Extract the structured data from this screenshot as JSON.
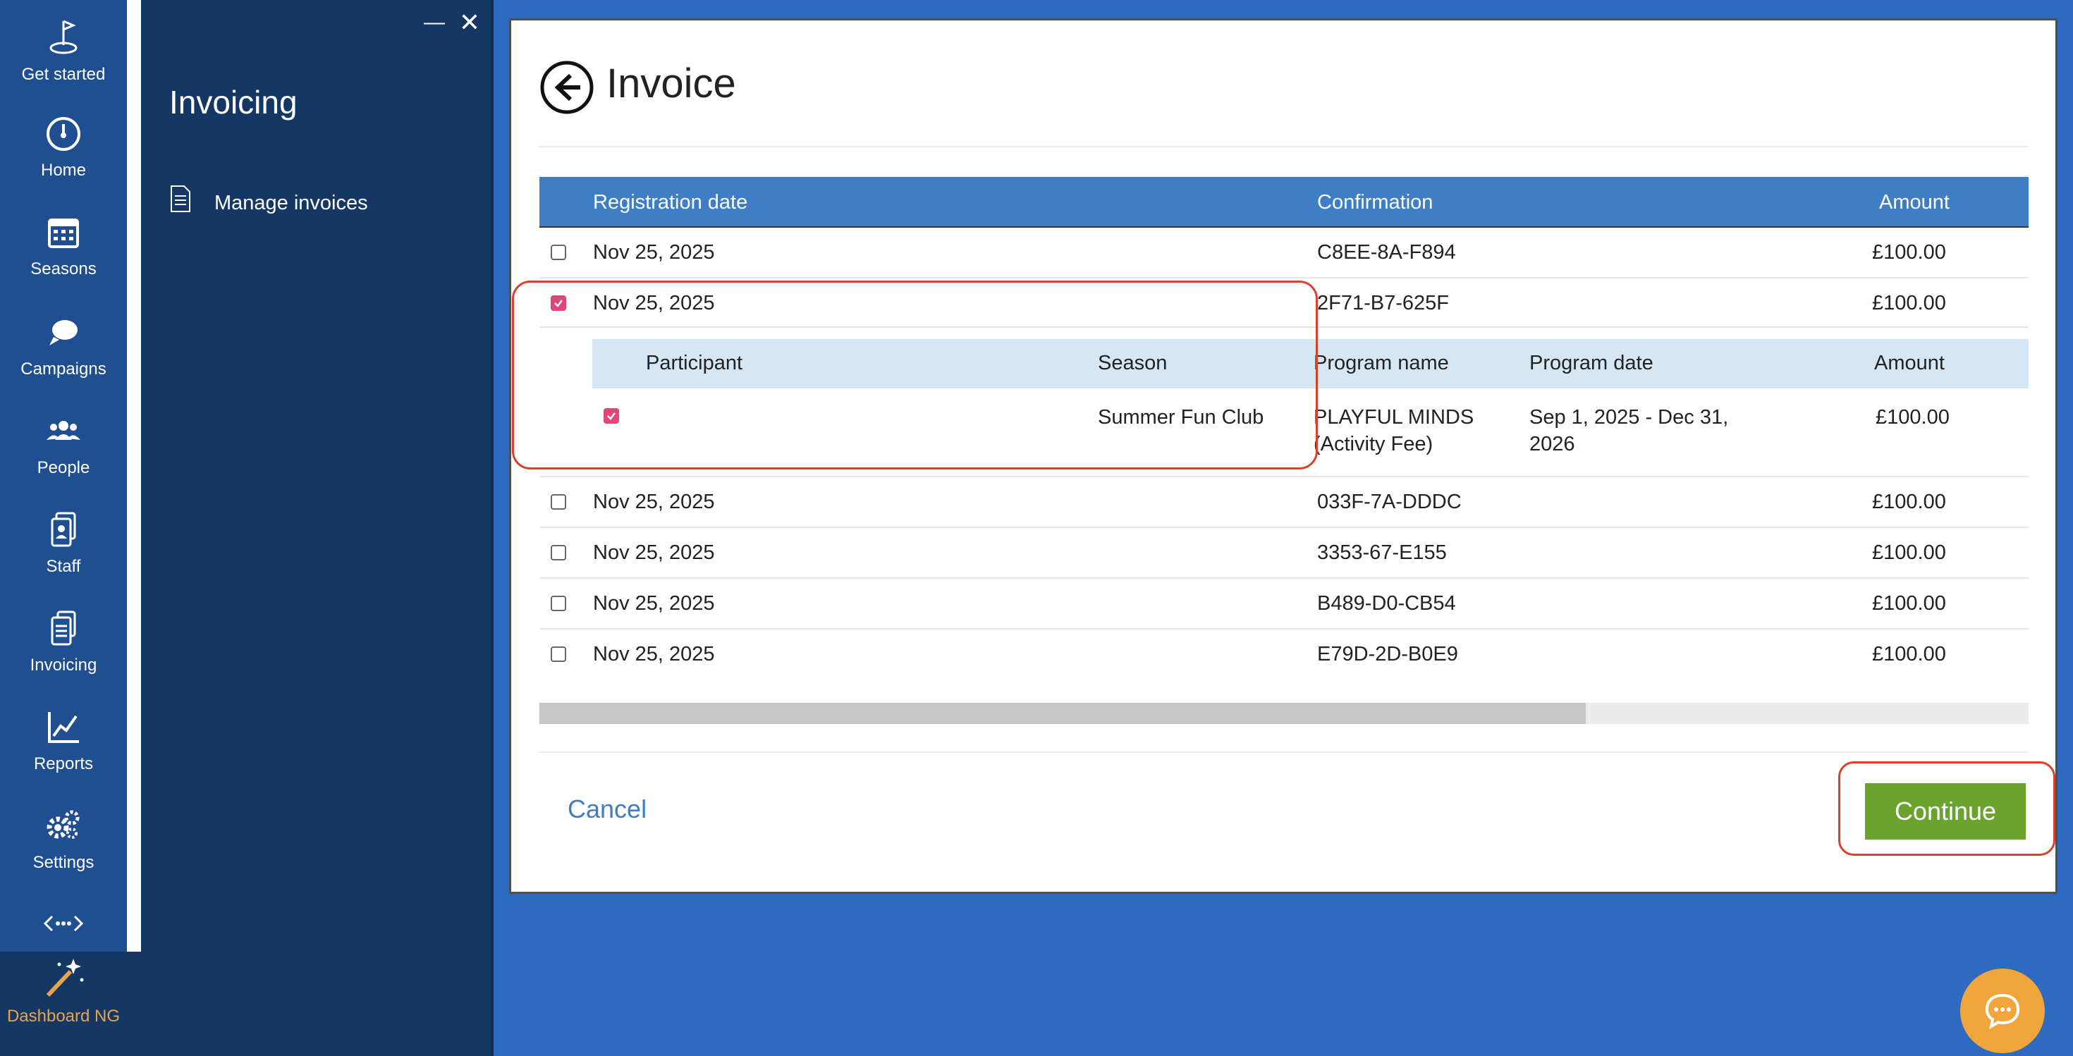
{
  "nav": {
    "items": [
      {
        "label": "Get started",
        "icon": "get-started-icon"
      },
      {
        "label": "Home",
        "icon": "home-icon"
      },
      {
        "label": "Seasons",
        "icon": "calendar-icon"
      },
      {
        "label": "Campaigns",
        "icon": "chat-bubbles-icon"
      },
      {
        "label": "People",
        "icon": "people-icon"
      },
      {
        "label": "Staff",
        "icon": "staff-icon"
      },
      {
        "label": "Invoicing",
        "icon": "invoicing-icon"
      },
      {
        "label": "Reports",
        "icon": "reports-icon"
      },
      {
        "label": "Settings",
        "icon": "settings-icon"
      }
    ],
    "more_icon": "more-icon",
    "dashboard_ng_label": "Dashboard NG"
  },
  "subpanel": {
    "title": "Invoicing",
    "items": [
      {
        "label": "Manage invoices",
        "icon": "document-icon"
      }
    ],
    "minimize_glyph": "—",
    "close_glyph": "✕"
  },
  "invoice": {
    "title": "Invoice",
    "columns": {
      "registration_date": "Registration date",
      "confirmation": "Confirmation",
      "amount": "Amount"
    },
    "rows": [
      {
        "date": "Nov 25, 2025",
        "confirmation": "C8EE-8A-F894",
        "amount": "£100.00",
        "checked": false
      },
      {
        "date": "Nov 25, 2025",
        "confirmation": "2F71-B7-625F",
        "amount": "£100.00",
        "checked": true
      },
      {
        "date": "Nov 25, 2025",
        "confirmation": "033F-7A-DDDC",
        "amount": "£100.00",
        "checked": false
      },
      {
        "date": "Nov 25, 2025",
        "confirmation": "3353-67-E155",
        "amount": "£100.00",
        "checked": false
      },
      {
        "date": "Nov 25, 2025",
        "confirmation": "B489-D0-CB54",
        "amount": "£100.00",
        "checked": false
      },
      {
        "date": "Nov 25, 2025",
        "confirmation": "E79D-2D-B0E9",
        "amount": "£100.00",
        "checked": false
      }
    ],
    "detail": {
      "columns": {
        "participant": "Participant",
        "season": "Season",
        "program_name": "Program name",
        "program_date": "Program date",
        "amount": "Amount"
      },
      "row": {
        "participant": "",
        "season": "Summer Fun Club",
        "program_name_1": "PLAYFUL MINDS",
        "program_name_2": "(Activity Fee)",
        "program_date_1": "Sep 1, 2025 - Dec 31,",
        "program_date_2": "2026",
        "amount": "£100.00",
        "checked": true
      }
    },
    "cancel_label": "Cancel",
    "continue_label": "Continue"
  },
  "colors": {
    "accent": "#3f7ec4",
    "continue": "#6aa32e",
    "highlight": "#d9402e",
    "checkbox": "#e0457b",
    "chat": "#f0a63a"
  }
}
